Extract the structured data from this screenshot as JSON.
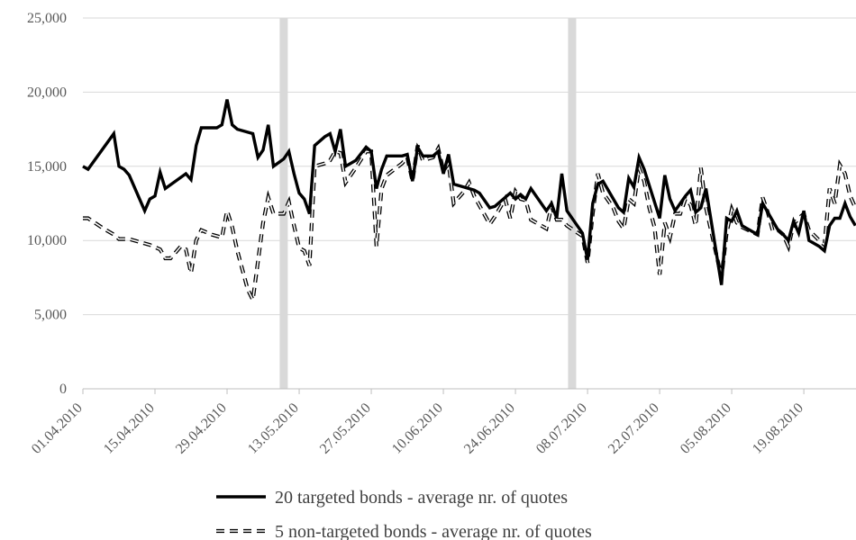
{
  "chart_data": {
    "type": "line",
    "x_ticks": [
      "01.04.2010",
      "15.04.2010",
      "29.04.2010",
      "13.05.2010",
      "27.05.2010",
      "10.06.2010",
      "24.06.2010",
      "08.07.2010",
      "22.07.2010",
      "05.08.2010",
      "19.08.2010"
    ],
    "y_ticks": [
      "0",
      "5,000",
      "10,000",
      "15,000",
      "20,000",
      "25,000"
    ],
    "ylim": [
      0,
      25000
    ],
    "grid": true,
    "legend_position": "bottom",
    "shaded_dates": [
      "2010-05-10",
      "2010-07-05"
    ],
    "series": [
      {
        "name": "20 targeted bonds - average nr. of quotes",
        "style": "solid",
        "points": [
          [
            "2010-04-01",
            15000
          ],
          [
            "2010-04-02",
            14800
          ],
          [
            "2010-04-07",
            17200
          ],
          [
            "2010-04-08",
            15000
          ],
          [
            "2010-04-09",
            14800
          ],
          [
            "2010-04-10",
            14400
          ],
          [
            "2010-04-13",
            12000
          ],
          [
            "2010-04-14",
            12800
          ],
          [
            "2010-04-15",
            13000
          ],
          [
            "2010-04-16",
            14600
          ],
          [
            "2010-04-17",
            13500
          ],
          [
            "2010-04-21",
            14500
          ],
          [
            "2010-04-22",
            14100
          ],
          [
            "2010-04-23",
            16400
          ],
          [
            "2010-04-24",
            17600
          ],
          [
            "2010-04-27",
            17600
          ],
          [
            "2010-04-28",
            17800
          ],
          [
            "2010-04-29",
            19500
          ],
          [
            "2010-04-30",
            17800
          ],
          [
            "2010-05-01",
            17500
          ],
          [
            "2010-05-04",
            17200
          ],
          [
            "2010-05-05",
            15600
          ],
          [
            "2010-05-06",
            16100
          ],
          [
            "2010-05-07",
            17800
          ],
          [
            "2010-05-08",
            15000
          ],
          [
            "2010-05-10",
            15500
          ],
          [
            "2010-05-11",
            16000
          ],
          [
            "2010-05-12",
            14500
          ],
          [
            "2010-05-13",
            13200
          ],
          [
            "2010-05-14",
            12800
          ],
          [
            "2010-05-15",
            11800
          ],
          [
            "2010-05-16",
            16400
          ],
          [
            "2010-05-18",
            17000
          ],
          [
            "2010-05-19",
            17200
          ],
          [
            "2010-05-20",
            16000
          ],
          [
            "2010-05-21",
            17500
          ],
          [
            "2010-05-22",
            15000
          ],
          [
            "2010-05-24",
            15400
          ],
          [
            "2010-05-26",
            16300
          ],
          [
            "2010-05-27",
            16000
          ],
          [
            "2010-05-28",
            13500
          ],
          [
            "2010-05-29",
            14800
          ],
          [
            "2010-05-30",
            15700
          ],
          [
            "2010-06-02",
            15700
          ],
          [
            "2010-06-03",
            15800
          ],
          [
            "2010-06-04",
            14000
          ],
          [
            "2010-06-05",
            16300
          ],
          [
            "2010-06-06",
            15700
          ],
          [
            "2010-06-08",
            15700
          ],
          [
            "2010-06-09",
            16000
          ],
          [
            "2010-06-10",
            14500
          ],
          [
            "2010-06-11",
            15800
          ],
          [
            "2010-06-12",
            13800
          ],
          [
            "2010-06-16",
            13400
          ],
          [
            "2010-06-17",
            13200
          ],
          [
            "2010-06-19",
            12200
          ],
          [
            "2010-06-20",
            12300
          ],
          [
            "2010-06-23",
            13200
          ],
          [
            "2010-06-24",
            12800
          ],
          [
            "2010-06-25",
            13100
          ],
          [
            "2010-06-26",
            12800
          ],
          [
            "2010-06-27",
            13500
          ],
          [
            "2010-06-30",
            12000
          ],
          [
            "2010-07-01",
            12500
          ],
          [
            "2010-07-02",
            11500
          ],
          [
            "2010-07-03",
            14500
          ],
          [
            "2010-07-04",
            12000
          ],
          [
            "2010-07-07",
            10500
          ],
          [
            "2010-07-08",
            8700
          ],
          [
            "2010-07-09",
            12500
          ],
          [
            "2010-07-10",
            13800
          ],
          [
            "2010-07-11",
            14000
          ],
          [
            "2010-07-14",
            12200
          ],
          [
            "2010-07-15",
            11900
          ],
          [
            "2010-07-16",
            14200
          ],
          [
            "2010-07-17",
            13600
          ],
          [
            "2010-07-18",
            15600
          ],
          [
            "2010-07-19",
            14800
          ],
          [
            "2010-07-22",
            11500
          ],
          [
            "2010-07-23",
            14400
          ],
          [
            "2010-07-24",
            12800
          ],
          [
            "2010-07-25",
            12000
          ],
          [
            "2010-07-27",
            13000
          ],
          [
            "2010-07-28",
            13400
          ],
          [
            "2010-07-29",
            11900
          ],
          [
            "2010-07-30",
            12200
          ],
          [
            "2010-07-31",
            13500
          ],
          [
            "2010-08-03",
            7000
          ],
          [
            "2010-08-04",
            11500
          ],
          [
            "2010-08-05",
            11300
          ],
          [
            "2010-08-06",
            12000
          ],
          [
            "2010-08-07",
            11000
          ],
          [
            "2010-08-10",
            10400
          ],
          [
            "2010-08-11",
            12500
          ],
          [
            "2010-08-12",
            11900
          ],
          [
            "2010-08-14",
            10700
          ],
          [
            "2010-08-15",
            10400
          ],
          [
            "2010-08-16",
            10000
          ],
          [
            "2010-08-17",
            11300
          ],
          [
            "2010-08-18",
            10500
          ],
          [
            "2010-08-19",
            12000
          ],
          [
            "2010-08-20",
            10000
          ],
          [
            "2010-08-22",
            9600
          ],
          [
            "2010-08-23",
            9300
          ],
          [
            "2010-08-24",
            11000
          ],
          [
            "2010-08-25",
            11500
          ],
          [
            "2010-08-26",
            11500
          ],
          [
            "2010-08-27",
            12500
          ],
          [
            "2010-08-28",
            11600
          ],
          [
            "2010-08-29",
            11000
          ]
        ]
      },
      {
        "name": "5 non-targeted bonds - average nr. of quotes",
        "style": "dashed",
        "points": [
          [
            "2010-04-01",
            11500
          ],
          [
            "2010-04-02",
            11500
          ],
          [
            "2010-04-05",
            10800
          ],
          [
            "2010-04-07",
            10400
          ],
          [
            "2010-04-08",
            10100
          ],
          [
            "2010-04-10",
            10100
          ],
          [
            "2010-04-13",
            9800
          ],
          [
            "2010-04-14",
            9700
          ],
          [
            "2010-04-16",
            9400
          ],
          [
            "2010-04-17",
            8800
          ],
          [
            "2010-04-18",
            8800
          ],
          [
            "2010-04-20",
            9600
          ],
          [
            "2010-04-21",
            9400
          ],
          [
            "2010-04-22",
            7800
          ],
          [
            "2010-04-23",
            10000
          ],
          [
            "2010-04-24",
            10700
          ],
          [
            "2010-04-26",
            10400
          ],
          [
            "2010-04-28",
            10200
          ],
          [
            "2010-04-29",
            12000
          ],
          [
            "2010-04-30",
            10900
          ],
          [
            "2010-05-01",
            9300
          ],
          [
            "2010-05-03",
            6700
          ],
          [
            "2010-05-04",
            6000
          ],
          [
            "2010-05-05",
            8600
          ],
          [
            "2010-05-06",
            11200
          ],
          [
            "2010-05-07",
            12900
          ],
          [
            "2010-05-08",
            11800
          ],
          [
            "2010-05-10",
            11800
          ],
          [
            "2010-05-11",
            12600
          ],
          [
            "2010-05-12",
            11000
          ],
          [
            "2010-05-13",
            9500
          ],
          [
            "2010-05-14",
            9300
          ],
          [
            "2010-05-15",
            8300
          ],
          [
            "2010-05-16",
            15000
          ],
          [
            "2010-05-18",
            15200
          ],
          [
            "2010-05-19",
            15400
          ],
          [
            "2010-05-20",
            16000
          ],
          [
            "2010-05-21",
            15900
          ],
          [
            "2010-05-22",
            13900
          ],
          [
            "2010-05-24",
            14900
          ],
          [
            "2010-05-26",
            16000
          ],
          [
            "2010-05-27",
            16000
          ],
          [
            "2010-05-28",
            9600
          ],
          [
            "2010-05-29",
            13500
          ],
          [
            "2010-05-30",
            14400
          ],
          [
            "2010-06-02",
            15200
          ],
          [
            "2010-06-03",
            15600
          ],
          [
            "2010-06-04",
            14000
          ],
          [
            "2010-06-05",
            16400
          ],
          [
            "2010-06-06",
            15400
          ],
          [
            "2010-06-08",
            15600
          ],
          [
            "2010-06-09",
            16200
          ],
          [
            "2010-06-10",
            14700
          ],
          [
            "2010-06-11",
            15200
          ],
          [
            "2010-06-12",
            12500
          ],
          [
            "2010-06-14",
            13300
          ],
          [
            "2010-06-15",
            13900
          ],
          [
            "2010-06-16",
            13000
          ],
          [
            "2010-06-19",
            11100
          ],
          [
            "2010-06-20",
            11600
          ],
          [
            "2010-06-22",
            12800
          ],
          [
            "2010-06-23",
            11500
          ],
          [
            "2010-06-24",
            13300
          ],
          [
            "2010-06-25",
            12800
          ],
          [
            "2010-06-26",
            12700
          ],
          [
            "2010-06-27",
            11400
          ],
          [
            "2010-06-30",
            10800
          ],
          [
            "2010-07-01",
            12300
          ],
          [
            "2010-07-02",
            11400
          ],
          [
            "2010-07-03",
            11400
          ],
          [
            "2010-07-04",
            11000
          ],
          [
            "2010-07-07",
            10300
          ],
          [
            "2010-07-08",
            8500
          ],
          [
            "2010-07-09",
            11800
          ],
          [
            "2010-07-10",
            14500
          ],
          [
            "2010-07-11",
            13200
          ],
          [
            "2010-07-13",
            12200
          ],
          [
            "2010-07-14",
            11300
          ],
          [
            "2010-07-15",
            10800
          ],
          [
            "2010-07-16",
            12800
          ],
          [
            "2010-07-17",
            12500
          ],
          [
            "2010-07-18",
            14900
          ],
          [
            "2010-07-19",
            14000
          ],
          [
            "2010-07-20",
            12200
          ],
          [
            "2010-07-21",
            10900
          ],
          [
            "2010-07-22",
            7700
          ],
          [
            "2010-07-23",
            11200
          ],
          [
            "2010-07-24",
            10200
          ],
          [
            "2010-07-25",
            11800
          ],
          [
            "2010-07-26",
            11800
          ],
          [
            "2010-07-27",
            12800
          ],
          [
            "2010-07-28",
            12400
          ],
          [
            "2010-07-29",
            11000
          ],
          [
            "2010-07-30",
            14900
          ],
          [
            "2010-07-31",
            12200
          ],
          [
            "2010-08-03",
            7500
          ],
          [
            "2010-08-04",
            10500
          ],
          [
            "2010-08-05",
            12100
          ],
          [
            "2010-08-06",
            11200
          ],
          [
            "2010-08-07",
            10900
          ],
          [
            "2010-08-10",
            10400
          ],
          [
            "2010-08-11",
            12900
          ],
          [
            "2010-08-12",
            11900
          ],
          [
            "2010-08-13",
            10600
          ],
          [
            "2010-08-14",
            10700
          ],
          [
            "2010-08-15",
            10400
          ],
          [
            "2010-08-16",
            9600
          ],
          [
            "2010-08-17",
            11100
          ],
          [
            "2010-08-18",
            11500
          ],
          [
            "2010-08-19",
            11800
          ],
          [
            "2010-08-20",
            10700
          ],
          [
            "2010-08-22",
            10000
          ],
          [
            "2010-08-23",
            9700
          ],
          [
            "2010-08-24",
            13500
          ],
          [
            "2010-08-25",
            12500
          ],
          [
            "2010-08-26",
            15100
          ],
          [
            "2010-08-27",
            14500
          ],
          [
            "2010-08-28",
            13000
          ],
          [
            "2010-08-29",
            12200
          ]
        ]
      }
    ]
  }
}
